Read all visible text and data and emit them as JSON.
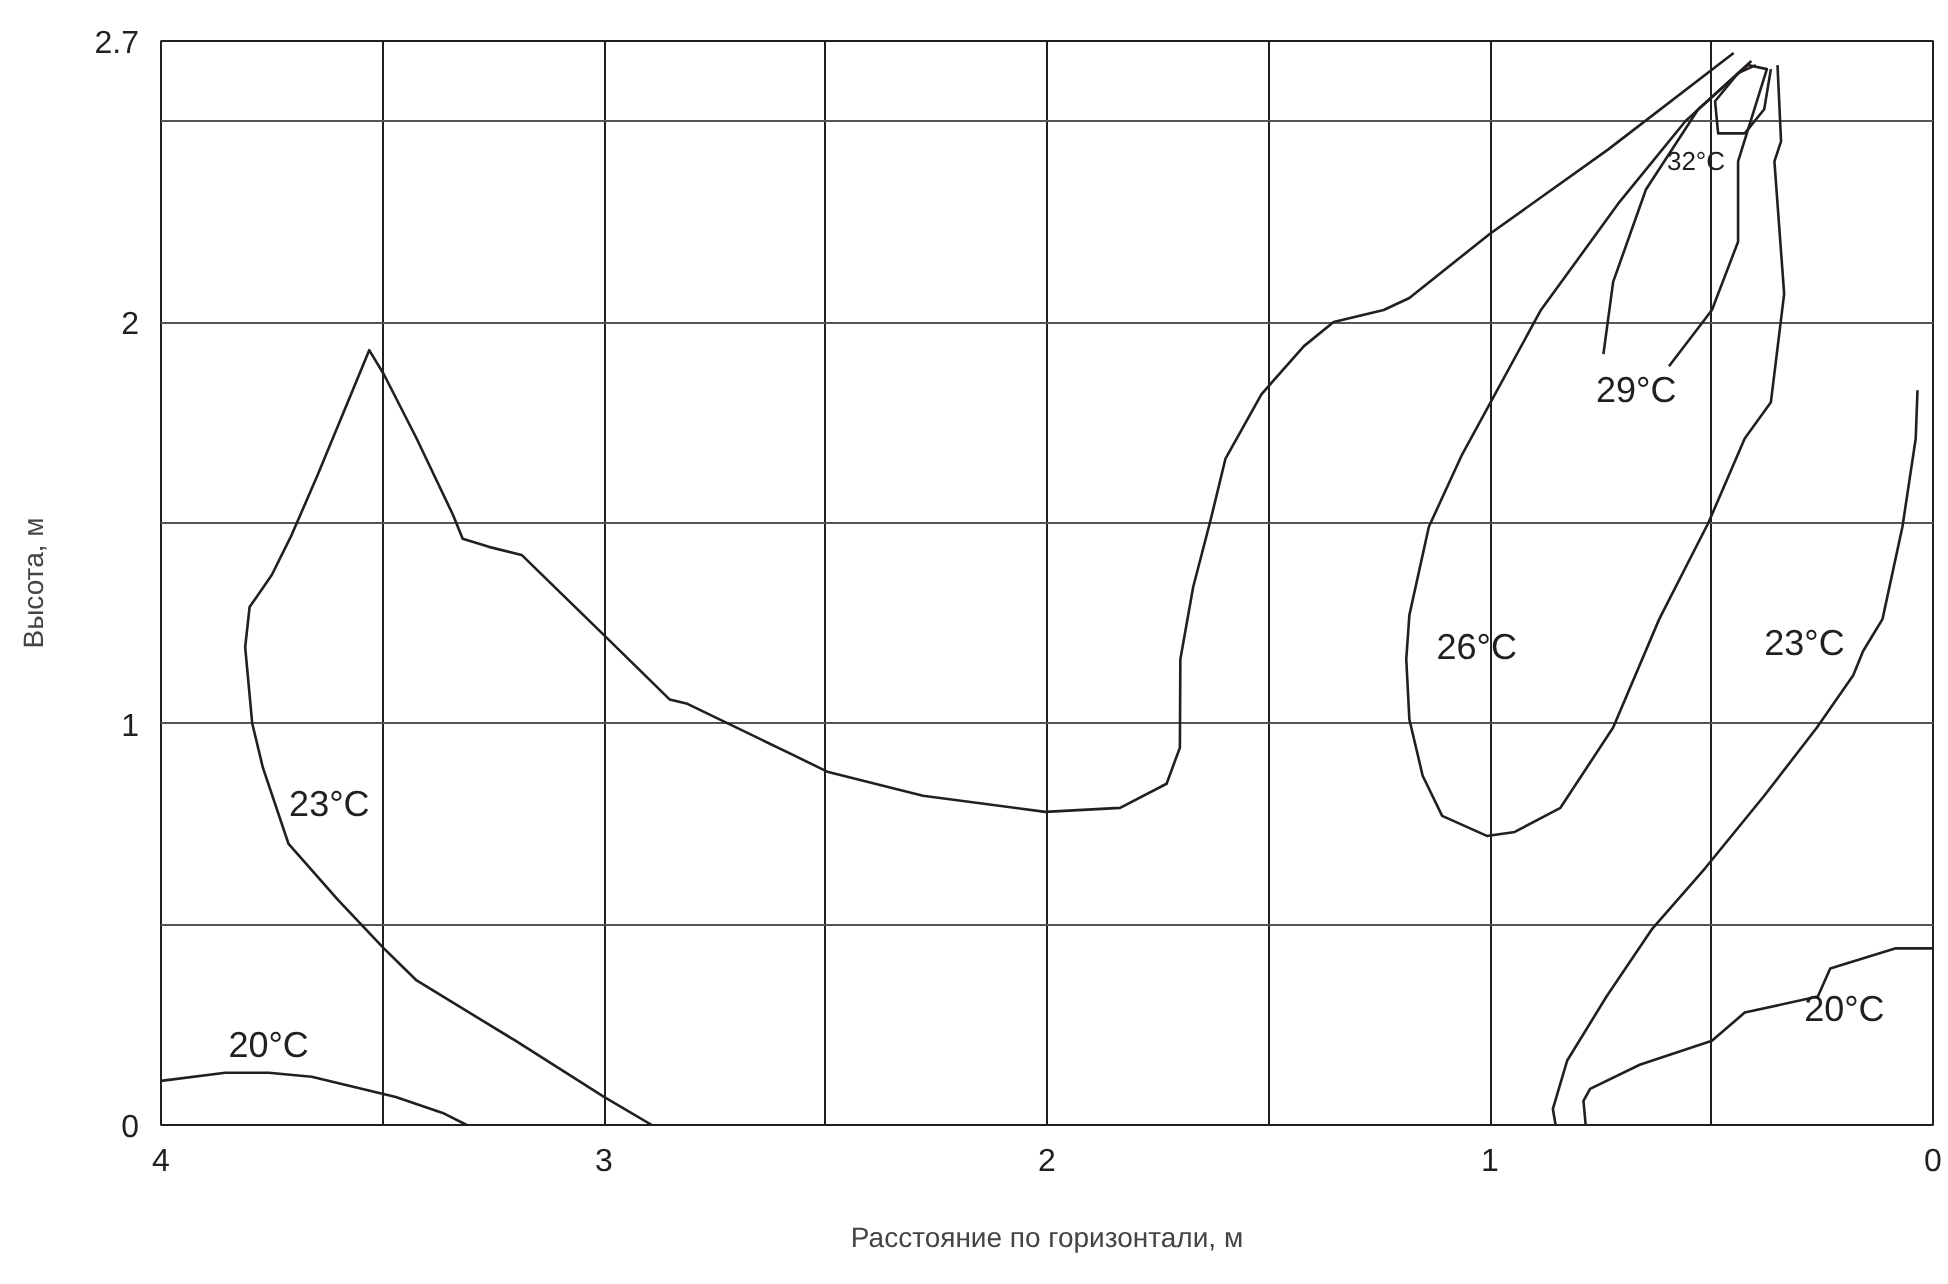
{
  "chart_data": {
    "type": "line",
    "xlabel": "Расстояние по горизонтали, м",
    "ylabel": "Высота, м",
    "xlim": [
      4,
      0
    ],
    "ylim": [
      0,
      2.7
    ],
    "xticks": [
      4,
      {
        "value": 3.5,
        "label": null
      },
      3,
      {
        "value": 2.5,
        "label": null
      },
      2,
      {
        "value": 1.5,
        "label": null
      },
      1,
      {
        "value": 0.5,
        "label": null
      },
      0
    ],
    "yticks": [
      0,
      {
        "value": 0.5,
        "label": null
      },
      1,
      {
        "value": 1.5,
        "label": null
      },
      2,
      {
        "value": 2.5,
        "label": null
      },
      2.7
    ],
    "grid": true,
    "marker": "none",
    "line_style": "solid",
    "series": [
      {
        "color": "#231f20",
        "x": [
          2.892,
          3.0,
          3.2,
          3.423,
          3.497,
          3.6,
          3.712,
          3.77,
          3.794,
          3.81,
          3.8,
          3.75,
          3.705,
          3.646,
          3.571,
          3.53,
          3.497,
          3.423,
          3.341,
          3.319,
          3.26,
          3.186,
          3.0,
          2.852,
          2.814,
          2.57,
          2.496,
          2.28,
          2.004,
          1.835,
          1.73,
          1.7,
          1.699,
          1.67,
          1.63,
          1.597,
          1.516,
          1.42,
          1.353,
          1.24,
          1.182,
          1.0,
          0.733,
          0.45
        ],
        "values": [
          0.0,
          0.07,
          0.21,
          0.36,
          0.44,
          0.56,
          0.7,
          0.89,
          1.0,
          1.19,
          1.29,
          1.37,
          1.47,
          1.62,
          1.82,
          1.93,
          1.87,
          1.71,
          1.52,
          1.46,
          1.44,
          1.42,
          1.22,
          1.06,
          1.05,
          0.92,
          0.88,
          0.82,
          0.78,
          0.79,
          0.85,
          0.94,
          1.16,
          1.34,
          1.51,
          1.66,
          1.82,
          1.94,
          2.0,
          2.03,
          2.06,
          2.22,
          2.43,
          2.67
        ]
      },
      {
        "color": "#231f20",
        "x": [
          4.0,
          3.855,
          3.757,
          3.66,
          3.47,
          3.364,
          3.31
        ],
        "values": [
          0.11,
          0.13,
          0.13,
          0.12,
          0.07,
          0.03,
          0.0
        ]
      },
      {
        "color": "#231f20",
        "x": [
          0.41,
          0.559,
          0.707,
          0.885,
          1.063,
          1.138,
          1.182,
          1.189,
          1.182,
          1.152,
          1.108,
          1.007,
          0.944,
          0.841,
          0.722,
          0.618,
          0.507,
          0.425,
          0.366,
          0.336,
          0.358,
          0.343,
          0.351
        ],
        "values": [
          2.65,
          2.5,
          2.3,
          2.03,
          1.67,
          1.49,
          1.27,
          1.16,
          1.01,
          0.87,
          0.77,
          0.72,
          0.73,
          0.79,
          0.99,
          1.26,
          1.5,
          1.71,
          1.8,
          2.07,
          2.4,
          2.45,
          2.64
        ]
      },
      {
        "color": "#231f20",
        "x": [
          0.596,
          0.499,
          0.44,
          0.44,
          0.375,
          0.418,
          0.53,
          0.648,
          0.722,
          0.744
        ],
        "values": [
          1.89,
          2.03,
          2.2,
          2.4,
          2.63,
          2.64,
          2.53,
          2.33,
          2.1,
          1.92
        ]
      },
      {
        "color": "#231f20",
        "x": [
          0.366,
          0.381,
          0.425,
          0.485,
          0.492,
          0.44,
          0.4
        ],
        "values": [
          2.63,
          2.53,
          2.47,
          2.47,
          2.55,
          2.62,
          2.64
        ]
      },
      {
        "color": "#231f20",
        "x": [
          0.035,
          0.039,
          0.069,
          0.114,
          0.158,
          0.18,
          0.262,
          0.381,
          0.514,
          0.633,
          0.737,
          0.826,
          0.858,
          0.852
        ],
        "values": [
          1.83,
          1.71,
          1.49,
          1.26,
          1.18,
          1.12,
          0.99,
          0.82,
          0.64,
          0.49,
          0.32,
          0.16,
          0.04,
          0.0
        ]
      },
      {
        "color": "#231f20",
        "x": [
          0.0,
          0.084,
          0.232,
          0.26,
          0.425,
          0.499,
          0.662,
          0.774,
          0.789,
          0.784
        ],
        "values": [
          0.44,
          0.44,
          0.39,
          0.32,
          0.28,
          0.21,
          0.15,
          0.09,
          0.06,
          0.0
        ]
      }
    ],
    "annotations": [
      "23°C",
      "20°C",
      "26°C",
      "29°C",
      "32°C",
      "23°C",
      "20°C"
    ]
  }
}
